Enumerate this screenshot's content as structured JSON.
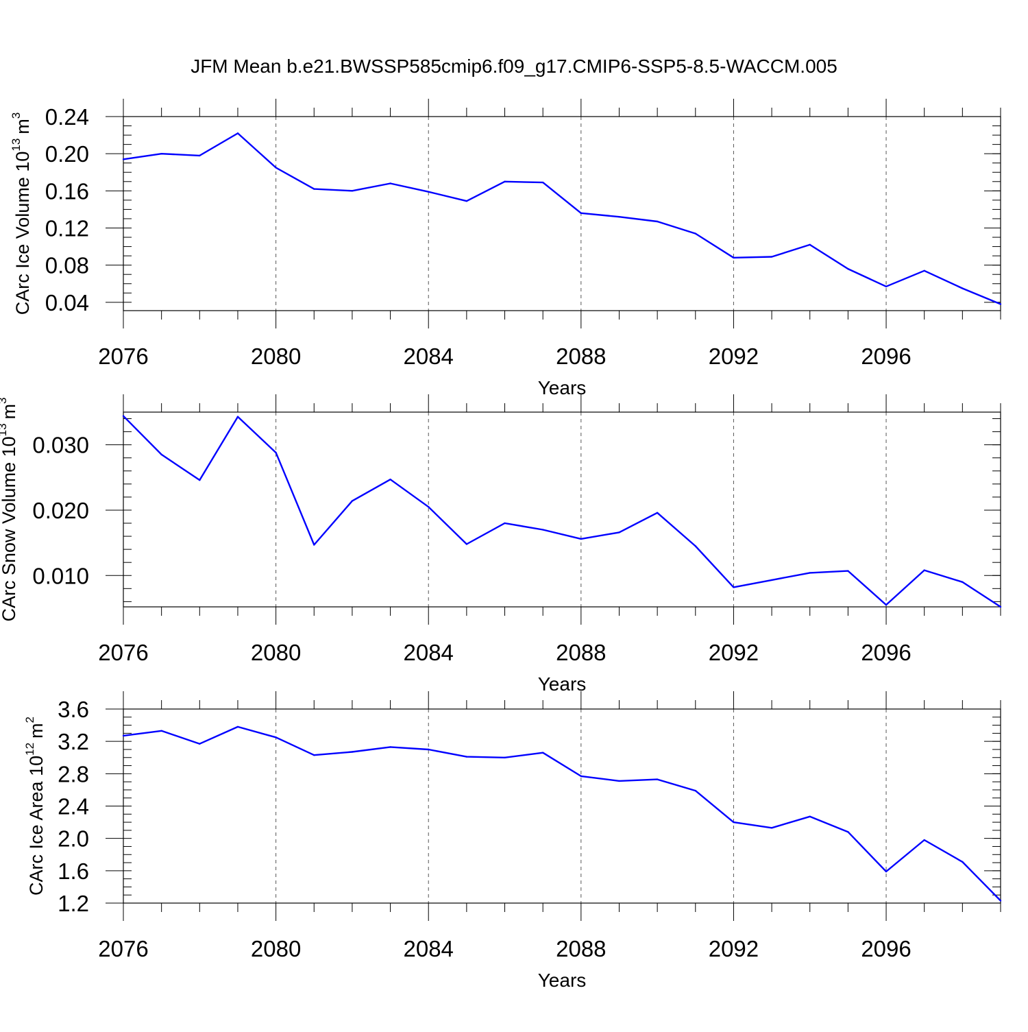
{
  "title": "JFM Mean b.e21.BWSSP585cmip6.f09_g17.CMIP6-SSP5-8.5-WACCM.005",
  "line_color": "#0000ff",
  "chart_data": [
    {
      "type": "line",
      "ylabel_main": "CArc Ice Volume 10",
      "ylabel_exp": "13",
      "ylabel_unit": "m",
      "ylabel_unit_exp": "3",
      "xlabel": "Years",
      "xlim": [
        2076,
        2099
      ],
      "ylim": [
        0.031,
        0.24
      ],
      "grid": "vertical-dashed",
      "x_ticks": [
        "2076",
        "2080",
        "2084",
        "2088",
        "2092",
        "2096"
      ],
      "y_ticks": [
        "0.04",
        "0.08",
        "0.12",
        "0.16",
        "0.20",
        "0.24"
      ],
      "x": [
        2076,
        2077,
        2078,
        2079,
        2080,
        2081,
        2082,
        2083,
        2084,
        2085,
        2086,
        2087,
        2088,
        2089,
        2090,
        2091,
        2092,
        2093,
        2094,
        2095,
        2096,
        2097,
        2098,
        2099
      ],
      "values": [
        0.194,
        0.2,
        0.198,
        0.222,
        0.185,
        0.162,
        0.16,
        0.168,
        0.159,
        0.149,
        0.17,
        0.169,
        0.136,
        0.132,
        0.127,
        0.114,
        0.088,
        0.089,
        0.102,
        0.076,
        0.057,
        0.074,
        0.055,
        0.038
      ]
    },
    {
      "type": "line",
      "ylabel_main": "CArc Snow Volume 10",
      "ylabel_exp": "13",
      "ylabel_unit": "m",
      "ylabel_unit_exp": "3",
      "xlabel": "Years",
      "xlim": [
        2076,
        2099
      ],
      "ylim": [
        0.0052,
        0.035
      ],
      "grid": "vertical-dashed",
      "x_ticks": [
        "2076",
        "2080",
        "2084",
        "2088",
        "2092",
        "2096"
      ],
      "y_ticks": [
        "0.010",
        "0.020",
        "0.030"
      ],
      "x": [
        2076,
        2077,
        2078,
        2079,
        2080,
        2081,
        2082,
        2083,
        2084,
        2085,
        2086,
        2087,
        2088,
        2089,
        2090,
        2091,
        2092,
        2093,
        2094,
        2095,
        2096,
        2097,
        2098,
        2099
      ],
      "values": [
        0.0344,
        0.0285,
        0.0246,
        0.0343,
        0.0288,
        0.0147,
        0.0214,
        0.0247,
        0.0205,
        0.0148,
        0.018,
        0.017,
        0.0156,
        0.0166,
        0.0196,
        0.0145,
        0.0082,
        0.0093,
        0.0104,
        0.0107,
        0.0055,
        0.0108,
        0.009,
        0.0052
      ]
    },
    {
      "type": "line",
      "ylabel_main": "CArc Ice Area 10",
      "ylabel_exp": "12",
      "ylabel_unit": "m",
      "ylabel_unit_exp": "2",
      "xlabel": "Years",
      "xlim": [
        2076,
        2099
      ],
      "ylim": [
        1.2,
        3.6
      ],
      "grid": "vertical-dashed",
      "x_ticks": [
        "2076",
        "2080",
        "2084",
        "2088",
        "2092",
        "2096"
      ],
      "y_ticks": [
        "1.2",
        "1.6",
        "2.0",
        "2.4",
        "2.8",
        "3.2",
        "3.6"
      ],
      "x": [
        2076,
        2077,
        2078,
        2079,
        2080,
        2081,
        2082,
        2083,
        2084,
        2085,
        2086,
        2087,
        2088,
        2089,
        2090,
        2091,
        2092,
        2093,
        2094,
        2095,
        2096,
        2097,
        2098,
        2099
      ],
      "values": [
        3.27,
        3.33,
        3.17,
        3.38,
        3.25,
        3.03,
        3.07,
        3.13,
        3.1,
        3.01,
        3.0,
        3.06,
        2.77,
        2.71,
        2.73,
        2.59,
        2.2,
        2.13,
        2.27,
        2.08,
        1.59,
        1.98,
        1.71,
        1.23
      ]
    }
  ]
}
